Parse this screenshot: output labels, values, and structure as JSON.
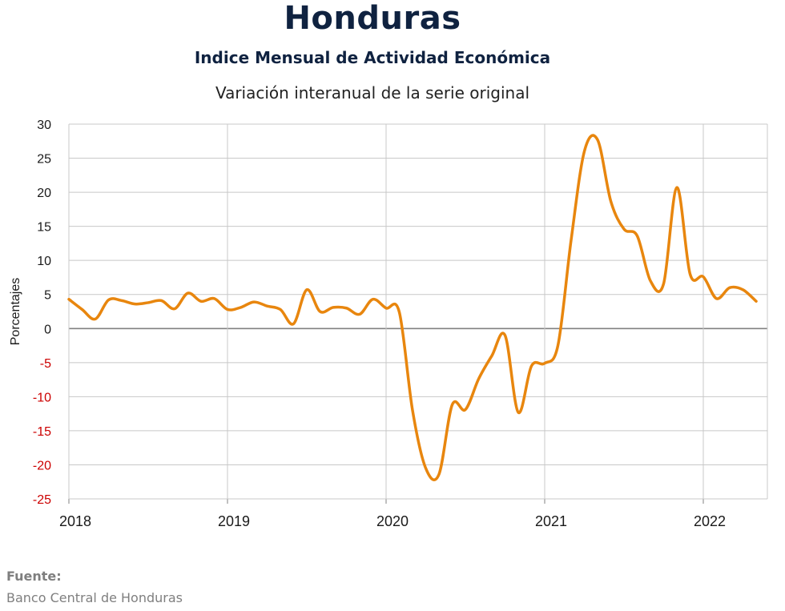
{
  "header": {
    "title": "Honduras",
    "subtitle": "Indice Mensual de  Actividad Económica",
    "subtitle2": "Variación interanual de la serie original"
  },
  "footer": {
    "source_label": "Fuente:",
    "source_text": "Banco Central de Honduras"
  },
  "colors": {
    "series": "#E8860E",
    "negative_ticks": "#CC0000",
    "grid": "#C8C8C8",
    "zero_line": "#808080"
  },
  "chart_data": {
    "type": "line",
    "ylabel": "Porcentajes",
    "xlabel": "",
    "ylim": [
      -25,
      30
    ],
    "yticks": [
      30,
      25,
      20,
      15,
      10,
      5,
      0,
      -5,
      -10,
      -15,
      -20,
      -25
    ],
    "xtick_labels": [
      "2018",
      "2019",
      "2020",
      "2021",
      "2022"
    ],
    "grid": true,
    "legend": "none",
    "series": [
      {
        "x": [
          "2018-01",
          "2018-02",
          "2018-03",
          "2018-04",
          "2018-05",
          "2018-06",
          "2018-07",
          "2018-08",
          "2018-09",
          "2018-10",
          "2018-11",
          "2018-12",
          "2019-01",
          "2019-02",
          "2019-03",
          "2019-04",
          "2019-05",
          "2019-06",
          "2019-07",
          "2019-08",
          "2019-09",
          "2019-10",
          "2019-11",
          "2019-12",
          "2020-01",
          "2020-02",
          "2020-03",
          "2020-04",
          "2020-05",
          "2020-06",
          "2020-07",
          "2020-08",
          "2020-09",
          "2020-10",
          "2020-11",
          "2020-12",
          "2021-01",
          "2021-02",
          "2021-03",
          "2021-04",
          "2021-05",
          "2021-06",
          "2021-07",
          "2021-08",
          "2021-09",
          "2021-10",
          "2021-11",
          "2021-12",
          "2022-01",
          "2022-02",
          "2022-03",
          "2022-04",
          "2022-05"
        ],
        "values": [
          4.3,
          2.8,
          1.4,
          4.2,
          4.1,
          3.6,
          3.8,
          4.1,
          2.9,
          5.2,
          4.0,
          4.4,
          2.8,
          3.1,
          3.9,
          3.3,
          2.8,
          0.7,
          5.7,
          2.5,
          3.1,
          3.0,
          2.1,
          4.3,
          3.0,
          2.4,
          -12.0,
          -20.5,
          -21.4,
          -11.2,
          -11.9,
          -7.4,
          -4.0,
          -1.0,
          -12.3,
          -5.5,
          -5.1,
          -2.5,
          13.0,
          26.0,
          27.7,
          18.7,
          14.6,
          13.6,
          7.0,
          6.6,
          20.7,
          8.0,
          7.6,
          4.4,
          6.0,
          5.7,
          4.0
        ]
      }
    ]
  }
}
